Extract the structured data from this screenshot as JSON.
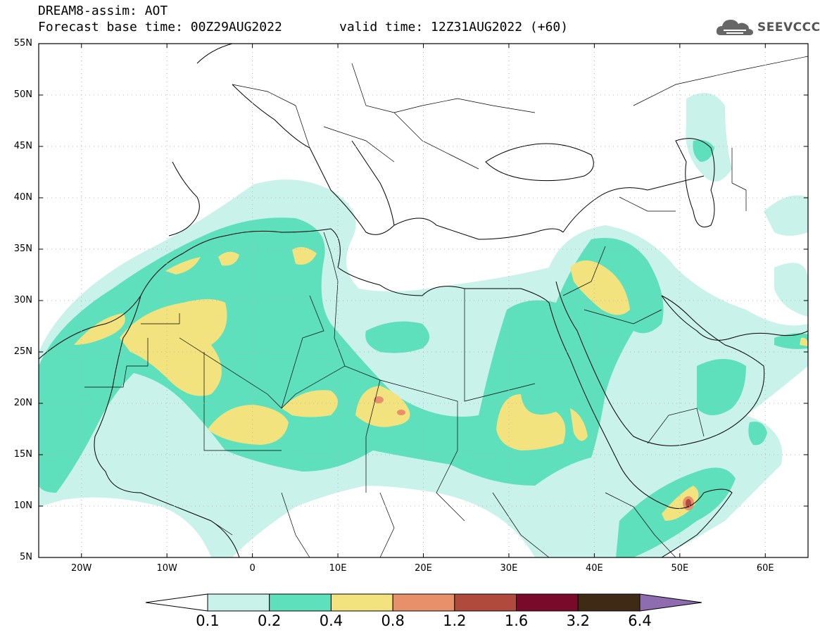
{
  "header": {
    "line1": "DREAM8-assim: AOT",
    "line2": "Forecast base time: 00Z29AUG2022",
    "valid": "valid time: 12Z31AUG2022 (+60)"
  },
  "logo": {
    "text": "SEEVCCC",
    "icon": "cloud-icon"
  },
  "map": {
    "projection": "lat-lon",
    "lon_range": [
      -25,
      65
    ],
    "lat_range": [
      5,
      55
    ],
    "lat_ticks": [
      {
        "value": 55,
        "label": "55N"
      },
      {
        "value": 50,
        "label": "50N"
      },
      {
        "value": 45,
        "label": "45N"
      },
      {
        "value": 40,
        "label": "40N"
      },
      {
        "value": 35,
        "label": "35N"
      },
      {
        "value": 30,
        "label": "30N"
      },
      {
        "value": 25,
        "label": "25N"
      },
      {
        "value": 20,
        "label": "20N"
      },
      {
        "value": 15,
        "label": "15N"
      },
      {
        "value": 10,
        "label": "10N"
      },
      {
        "value": 5,
        "label": "5N"
      }
    ],
    "lon_ticks": [
      {
        "value": -20,
        "label": "20W"
      },
      {
        "value": -10,
        "label": "10W"
      },
      {
        "value": 0,
        "label": "0"
      },
      {
        "value": 10,
        "label": "10E"
      },
      {
        "value": 20,
        "label": "20E"
      },
      {
        "value": 30,
        "label": "30E"
      },
      {
        "value": 40,
        "label": "40E"
      },
      {
        "value": 50,
        "label": "50E"
      },
      {
        "value": 60,
        "label": "60E"
      }
    ],
    "grid": "dotted",
    "field": "Aerosol optical thickness (AOT)"
  },
  "colorbar": {
    "levels": [
      "0.1",
      "0.2",
      "0.4",
      "0.8",
      "1.2",
      "1.6",
      "3.2",
      "6.4"
    ],
    "colors": [
      "#ffffff",
      "#c9f2ea",
      "#5ee0bd",
      "#f2e37e",
      "#e8906a",
      "#b04a3c",
      "#7a0a2a",
      "#3f2a16",
      "#8f6bb0"
    ]
  }
}
